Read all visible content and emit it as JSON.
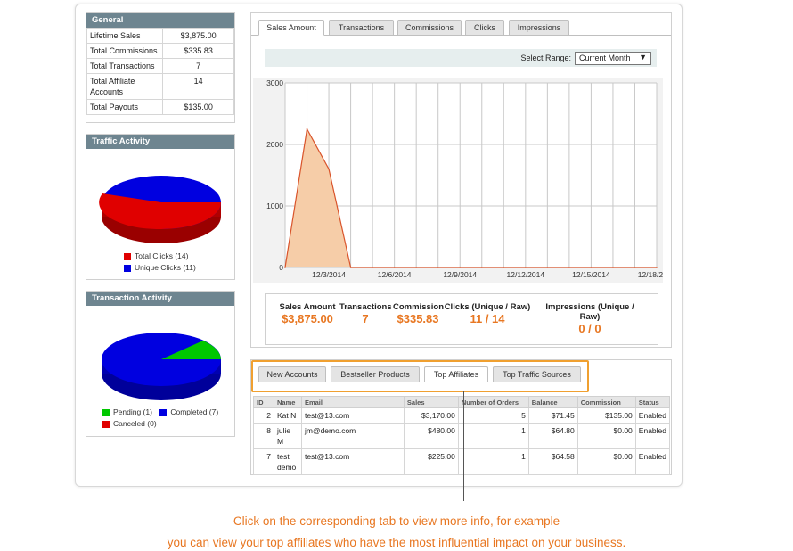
{
  "general": {
    "title": "General",
    "rows": [
      {
        "label": "Lifetime Sales",
        "value": "$3,875.00"
      },
      {
        "label": "Total Commissions",
        "value": "$335.83"
      },
      {
        "label": "Total Transactions",
        "value": "7"
      },
      {
        "label": "Total Affiliate Accounts",
        "value": "14"
      },
      {
        "label": "Total Payouts",
        "value": "$135.00"
      }
    ]
  },
  "traffic": {
    "title": "Traffic Activity",
    "legend": [
      {
        "label": "Total Clicks (14)",
        "color": "#e00000",
        "value": 14
      },
      {
        "label": "Unique Clicks (11)",
        "color": "#0000e0",
        "value": 11
      }
    ]
  },
  "transaction": {
    "title": "Transaction Activity",
    "legend": [
      {
        "label": "Pending (1)",
        "color": "#00c800",
        "value": 1
      },
      {
        "label": "Completed (7)",
        "color": "#0000e0",
        "value": 7
      },
      {
        "label": "Canceled (0)",
        "color": "#e00000",
        "value": 0
      }
    ]
  },
  "chart_tabs": [
    "Sales Amount",
    "Transactions",
    "Commissions",
    "Clicks",
    "Impressions"
  ],
  "range": {
    "label": "Select Range:",
    "value": "Current Month"
  },
  "chart_data": {
    "type": "area",
    "x": [
      "12/1/2014",
      "12/2/2014",
      "12/3/2014",
      "12/4/2014",
      "12/5/2014",
      "12/6/2014",
      "12/7/2014",
      "12/8/2014",
      "12/9/2014",
      "12/10/2014",
      "12/11/2014",
      "12/12/2014",
      "12/13/2014",
      "12/14/2014",
      "12/15/2014",
      "12/16/2014",
      "12/17/2014",
      "12/18/2014"
    ],
    "x_tick_labels": [
      "12/3/2014",
      "12/6/2014",
      "12/9/2014",
      "12/12/2014",
      "12/15/2014",
      "12/18/2014"
    ],
    "series": [
      {
        "values": [
          0,
          2250,
          1600,
          0,
          0,
          0,
          0,
          0,
          0,
          0,
          0,
          0,
          0,
          0,
          0,
          0,
          0,
          0
        ]
      }
    ],
    "ylim": [
      0,
      3000
    ],
    "y_ticks": [
      0,
      1000,
      2000,
      3000
    ],
    "grid": true,
    "line_color": "#d9542b",
    "fill_color": "#f6cda8"
  },
  "stats": [
    {
      "label": "Sales Amount",
      "value": "$3,875.00"
    },
    {
      "label": "Transactions",
      "value": "7"
    },
    {
      "label": "Commission",
      "value": "$335.83"
    },
    {
      "label": "Clicks (Unique / Raw)",
      "value": "11 / 14"
    },
    {
      "label": "Impressions (Unique / Raw)",
      "value": "0 / 0"
    }
  ],
  "bottom_tabs": [
    "New Accounts",
    "Bestseller Products",
    "Top Affiliates",
    "Top Traffic Sources"
  ],
  "affiliates": {
    "headers": [
      "ID",
      "Name",
      "Email",
      "Sales",
      "Number of Orders",
      "Balance",
      "Commission",
      "Status"
    ],
    "rows": [
      [
        "2",
        "Kat N",
        "test@13.com",
        "$3,170.00",
        "5",
        "$71.45",
        "$135.00",
        "Enabled"
      ],
      [
        "8",
        "julie M",
        "jm@demo.com",
        "$480.00",
        "1",
        "$64.80",
        "$0.00",
        "Enabled"
      ],
      [
        "7",
        "test demo",
        "test@13.com",
        "$225.00",
        "1",
        "$64.58",
        "$0.00",
        "Enabled"
      ]
    ]
  },
  "caption": {
    "line1": "Click on the corresponding tab to view more info, for example",
    "line2": "you can view your top affiliates who have the most influential impact on your business."
  }
}
